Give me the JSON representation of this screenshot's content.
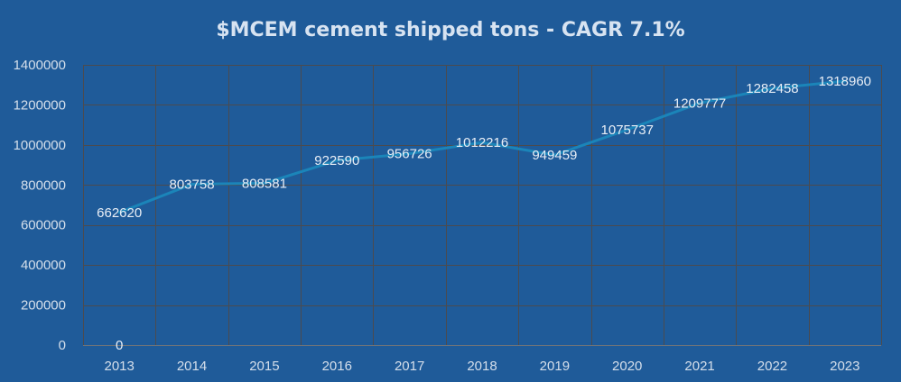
{
  "chart_data": {
    "type": "line",
    "title": "$MCEM cement shipped tons - CAGR 7.1%",
    "xlabel": "",
    "ylabel": "",
    "categories": [
      "2013",
      "2014",
      "2015",
      "2016",
      "2017",
      "2018",
      "2019",
      "2020",
      "2021",
      "2022",
      "2023"
    ],
    "values": [
      662620,
      803758,
      808581,
      922590,
      956726,
      1012216,
      949459,
      1075737,
      1209777,
      1282458,
      1318960
    ],
    "y_ticks": [
      "0",
      "200000",
      "400000",
      "600000",
      "800000",
      "1000000",
      "1200000",
      "1400000"
    ],
    "ylim": [
      0,
      1400000
    ],
    "extra_label": "0",
    "grid": true,
    "legend": "none",
    "colors": {
      "background": "#1f5b99",
      "line": "#1b85b9",
      "grid": "#4b4b4f",
      "text": "#d5dfeb"
    }
  }
}
